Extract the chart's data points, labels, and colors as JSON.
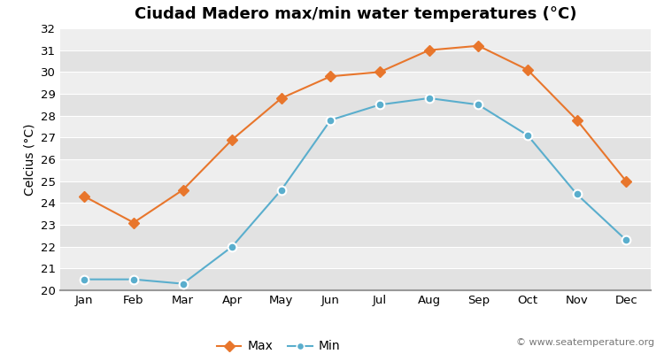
{
  "title": "Ciudad Madero max/min water temperatures (°C)",
  "ylabel": "Celcius (°C)",
  "watermark": "© www.seatemperature.org",
  "months": [
    "Jan",
    "Feb",
    "Mar",
    "Apr",
    "May",
    "Jun",
    "Jul",
    "Aug",
    "Sep",
    "Oct",
    "Nov",
    "Dec"
  ],
  "max_temps": [
    24.3,
    23.1,
    24.6,
    26.9,
    28.8,
    29.8,
    30.0,
    31.0,
    31.2,
    30.1,
    27.8,
    25.0
  ],
  "min_temps": [
    20.5,
    20.5,
    20.3,
    22.0,
    24.6,
    27.8,
    28.5,
    28.8,
    28.5,
    27.1,
    24.4,
    22.3
  ],
  "max_color": "#e8762c",
  "min_color": "#5aaecd",
  "bg_color": "#ffffff",
  "plot_bg_color_light": "#eeeeee",
  "plot_bg_color_dark": "#e2e2e2",
  "grid_color": "#ffffff",
  "bottom_bar_color": "#888888",
  "ylim": [
    20,
    32
  ],
  "yticks": [
    20,
    21,
    22,
    23,
    24,
    25,
    26,
    27,
    28,
    29,
    30,
    31,
    32
  ],
  "legend_labels": [
    "Max",
    "Min"
  ],
  "title_fontsize": 13,
  "axis_fontsize": 10,
  "tick_fontsize": 9.5,
  "legend_fontsize": 10,
  "watermark_fontsize": 8
}
